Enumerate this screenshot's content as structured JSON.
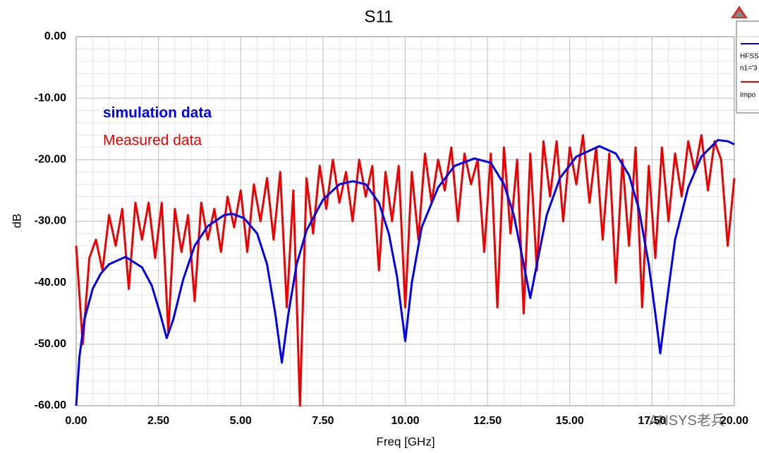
{
  "chart_data": {
    "type": "line",
    "title": "S11",
    "x_label": "Freq [GHz]",
    "y_label": "dB",
    "annotations": [
      {
        "text": "simulation data",
        "color": "#0000ee"
      },
      {
        "text": "Measured data",
        "color": "#ee0000"
      }
    ],
    "legend_texts": [
      "HFSS",
      "n1='3",
      "Impo"
    ],
    "watermark": "ANSYS老兵",
    "xlim": [
      0,
      20
    ],
    "ylim": [
      -60,
      0
    ],
    "xticks": [
      {
        "value": 0,
        "label": "0.00"
      },
      {
        "value": 2.5,
        "label": "2.50"
      },
      {
        "value": 5,
        "label": "5.00"
      },
      {
        "value": 7.5,
        "label": "7.50"
      },
      {
        "value": 10,
        "label": "10.00"
      },
      {
        "value": 12.5,
        "label": "12.50"
      },
      {
        "value": 15,
        "label": "15.00"
      },
      {
        "value": 17.5,
        "label": "17.50"
      },
      {
        "value": 20,
        "label": "20.00"
      }
    ],
    "yticks": [
      {
        "value": 0,
        "label": "0.00"
      },
      {
        "value": -10,
        "label": "-10.00"
      },
      {
        "value": -20,
        "label": "-20.00"
      },
      {
        "value": -30,
        "label": "-30.00"
      },
      {
        "value": -40,
        "label": "-40.00"
      },
      {
        "value": -50,
        "label": "-50.00"
      },
      {
        "value": -60,
        "label": "-60.00"
      }
    ],
    "grid": true,
    "series": [
      {
        "color": "#ee0000",
        "x": [
          0,
          0.2,
          0.4,
          0.6,
          0.8,
          1,
          1.2,
          1.4,
          1.6,
          1.8,
          2,
          2.2,
          2.4,
          2.6,
          2.8,
          3,
          3.2,
          3.4,
          3.6,
          3.8,
          4,
          4.2,
          4.4,
          4.6,
          4.8,
          5,
          5.2,
          5.4,
          5.6,
          5.8,
          6,
          6.2,
          6.4,
          6.6,
          6.8,
          7,
          7.2,
          7.4,
          7.6,
          7.8,
          8,
          8.2,
          8.4,
          8.6,
          8.8,
          9,
          9.2,
          9.4,
          9.6,
          9.8,
          10,
          10.2,
          10.4,
          10.6,
          10.8,
          11,
          11.2,
          11.4,
          11.6,
          11.8,
          12,
          12.2,
          12.4,
          12.6,
          12.8,
          13,
          13.2,
          13.4,
          13.6,
          13.8,
          14,
          14.2,
          14.4,
          14.6,
          14.8,
          15,
          15.2,
          15.4,
          15.6,
          15.8,
          16,
          16.2,
          16.4,
          16.6,
          16.8,
          17,
          17.2,
          17.4,
          17.6,
          17.8,
          18,
          18.2,
          18.4,
          18.6,
          18.8,
          19,
          19.2,
          19.4,
          19.6,
          19.8,
          20
        ],
        "values": [
          -34,
          -50,
          -36,
          -33,
          -38,
          -29,
          -34,
          -28,
          -41,
          -27,
          -33,
          -27,
          -36,
          -27,
          -48,
          -28,
          -35,
          -29,
          -43,
          -27,
          -33,
          -28,
          -35,
          -26,
          -31,
          -25,
          -35,
          -24,
          -30,
          -23,
          -33,
          -22,
          -44,
          -25,
          -60,
          -23,
          -32,
          -21,
          -28,
          -20,
          -27,
          -22,
          -30,
          -20,
          -26,
          -21,
          -38,
          -22,
          -30,
          -21,
          -44,
          -22,
          -33,
          -19,
          -27,
          -20,
          -25,
          -18,
          -30,
          -19,
          -24,
          -20,
          -35,
          -19,
          -44,
          -18,
          -32,
          -20,
          -45,
          -19,
          -38,
          -17,
          -26,
          -17,
          -30,
          -18,
          -24,
          -16,
          -27,
          -18,
          -33,
          -19,
          -40,
          -20,
          -34,
          -18,
          -44,
          -21,
          -36,
          -18,
          -30,
          -19,
          -26,
          -17,
          -22,
          -16,
          -25,
          -17,
          -20,
          -34,
          -23
        ]
      },
      {
        "color": "#0000ee",
        "x": [
          0,
          0.1,
          0.25,
          0.5,
          0.75,
          1,
          1.5,
          2,
          2.3,
          2.55,
          2.75,
          2.95,
          3.25,
          3.6,
          4,
          4.5,
          4.75,
          5.1,
          5.5,
          5.8,
          6.05,
          6.25,
          6.45,
          6.7,
          7,
          7.5,
          8,
          8.4,
          8.8,
          9.2,
          9.5,
          9.75,
          10,
          10.2,
          10.5,
          11,
          11.5,
          12.1,
          12.6,
          13,
          13.3,
          13.6,
          13.8,
          14,
          14.3,
          14.7,
          15.2,
          15.9,
          16.4,
          16.8,
          17.1,
          17.4,
          17.6,
          17.75,
          17.95,
          18.2,
          18.6,
          19,
          19.5,
          19.8,
          20
        ],
        "values": [
          -60,
          -52,
          -46,
          -41,
          -38.5,
          -37,
          -35.8,
          -37.5,
          -40.5,
          -45,
          -49,
          -46,
          -39.5,
          -34,
          -30.8,
          -29,
          -28.8,
          -29.5,
          -32,
          -37,
          -45,
          -53,
          -45,
          -37,
          -31.5,
          -26.5,
          -24,
          -23.5,
          -24,
          -27,
          -32,
          -39,
          -49.5,
          -40,
          -31,
          -24.5,
          -21,
          -19.8,
          -20.5,
          -24,
          -29,
          -37,
          -42.5,
          -37,
          -29,
          -23,
          -19.5,
          -17.8,
          -19,
          -22.5,
          -28,
          -37,
          -45,
          -51.5,
          -43,
          -33,
          -24.5,
          -19.5,
          -16.8,
          -17,
          -17.5
        ]
      }
    ]
  }
}
